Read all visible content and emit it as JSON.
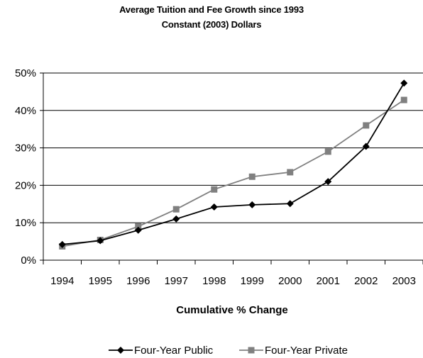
{
  "chart_data": {
    "type": "line",
    "title": "Average Tuition and Fee Growth since 1993",
    "subtitle": "Constant (2003) Dollars",
    "xlabel": "Cumulative % Change",
    "ylabel": "",
    "categories": [
      "1994",
      "1995",
      "1996",
      "1997",
      "1998",
      "1999",
      "2000",
      "2001",
      "2002",
      "2003"
    ],
    "ylim": [
      0,
      50
    ],
    "yticks": [
      0,
      10,
      20,
      30,
      40,
      50
    ],
    "ytick_labels": [
      "0%",
      "10%",
      "20%",
      "30%",
      "40%",
      "50%"
    ],
    "grid": "horizontal",
    "legend_position": "bottom",
    "series": [
      {
        "name": "Four-Year Public",
        "color": "#000000",
        "marker": "diamond",
        "values": [
          4.2,
          5.2,
          8.0,
          11.0,
          14.2,
          14.8,
          15.1,
          21.0,
          30.4,
          47.3
        ]
      },
      {
        "name": "Four-Year Private",
        "color": "#808080",
        "marker": "square",
        "values": [
          3.7,
          5.4,
          9.0,
          13.6,
          18.9,
          22.3,
          23.5,
          29.0,
          36.0,
          42.8
        ]
      }
    ]
  }
}
